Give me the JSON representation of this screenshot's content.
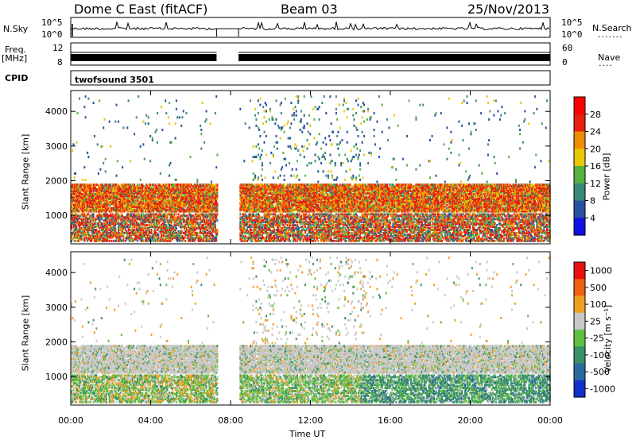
{
  "header": {
    "station": "Dome C East (fitACF)",
    "beam": "Beam 03",
    "date": "25/Nov/2013"
  },
  "panels": {
    "nsky_label": "N.Sky",
    "nsky_ticks": [
      "10^5",
      "10^0"
    ],
    "nsearch_label": "N.Search",
    "nsearch_ticks": [
      "10^5",
      "10^0"
    ],
    "freq_label_1": "Freq.",
    "freq_label_2": "[MHz]",
    "freq_ticks": [
      "12",
      "8"
    ],
    "nave_label": "Nave",
    "nave_ticks": [
      "60",
      "0"
    ],
    "cpid_label": "CPID",
    "cpid_value": "twofsound 3501"
  },
  "chart_data": [
    {
      "type": "heatmap",
      "name": "Power",
      "ylabel": "Slant Range [km]",
      "yticks": [
        1000,
        2000,
        3000,
        4000
      ],
      "ylim": [
        180,
        4600
      ],
      "colorbar_label": "Power [dB]",
      "colorbar_ticks": [
        4,
        8,
        12,
        16,
        20,
        24,
        28
      ],
      "colors": [
        "#1010e0",
        "#2850a0",
        "#3a8a78",
        "#55b040",
        "#e8c800",
        "#f08a00",
        "#e82010",
        "#ff0000"
      ],
      "data_gap_ut": [
        7.3,
        8.4
      ]
    },
    {
      "type": "heatmap",
      "name": "Velocity",
      "ylabel": "Slant Range [km]",
      "yticks": [
        1000,
        2000,
        3000,
        4000
      ],
      "ylim": [
        180,
        4600
      ],
      "colorbar_label": "Velocity [m s⁻¹]",
      "colorbar_ticks": [
        "1000",
        "500",
        "100",
        "25",
        "-25",
        "-100",
        "-500",
        "-1000"
      ],
      "colors": [
        "#1030c8",
        "#2a6aa0",
        "#3a9068",
        "#60c040",
        "#c8c8c8",
        "#f0a020",
        "#f06010",
        "#e81010"
      ],
      "data_gap_ut": [
        7.3,
        8.4
      ]
    }
  ],
  "xaxis": {
    "ticks": [
      "00:00",
      "04:00",
      "08:00",
      "12:00",
      "16:00",
      "20:00",
      "00:00"
    ],
    "label": "Time UT",
    "xlim": [
      0,
      24
    ]
  }
}
